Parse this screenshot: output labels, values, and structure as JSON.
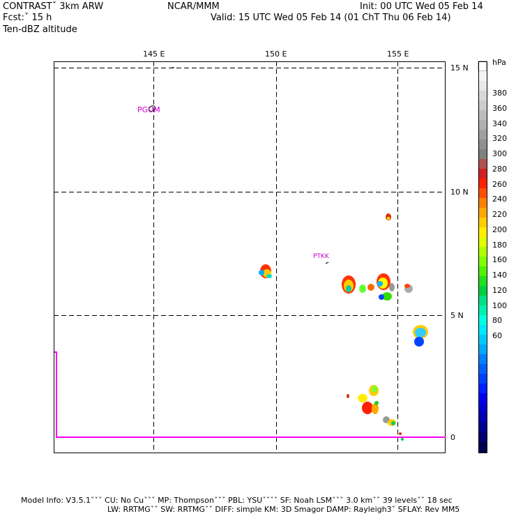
{
  "header": {
    "experiment": "CONTRASTˇ 3km ARW",
    "forecast": "Fcst:ˇ 15 h",
    "field": "Ten-dBZ altitude",
    "center": "NCAR/MMM",
    "init": "Init: 00 UTC Wed 05 Feb 14",
    "valid": "Valid: 15 UTC Wed 05 Feb 14 (01 ChT Thu 06 Feb 14)"
  },
  "map": {
    "lon_labels": [
      "145 E",
      "150 E",
      "155 E"
    ],
    "lat_labels": [
      "15 N",
      "10 N",
      "5 N",
      "0"
    ],
    "stations": [
      "PGUM",
      "PTKK"
    ],
    "lon_range": [
      141,
      157
    ],
    "lat_range": [
      -0.6,
      15.2
    ]
  },
  "colorbar": {
    "unit": "hPa",
    "labels": [
      "380",
      "360",
      "340",
      "320",
      "300",
      "280",
      "260",
      "240",
      "220",
      "200",
      "180",
      "160",
      "140",
      "120",
      "100",
      "80",
      "60"
    ]
  },
  "footer": {
    "line1": "Model Info: V3.5.1ˇˇˇ CU: No Cuˇˇˇ MP: Thompsonˇˇˇ PBL: YSUˇˇˇˇ SF: Noah LSMˇˇˇ 3.0 kmˇˇ 39 levelsˇˇ 18 sec",
    "line2": "LW: RRTMGˇˇ SW: RRTMGˇˇ DIFF: simple KM: 3D Smagor DAMP: Rayleigh3ˇ SFLAY: Rev MM5"
  },
  "colors": {
    "station": "#cc00cc",
    "coast": "#ff00ff"
  }
}
